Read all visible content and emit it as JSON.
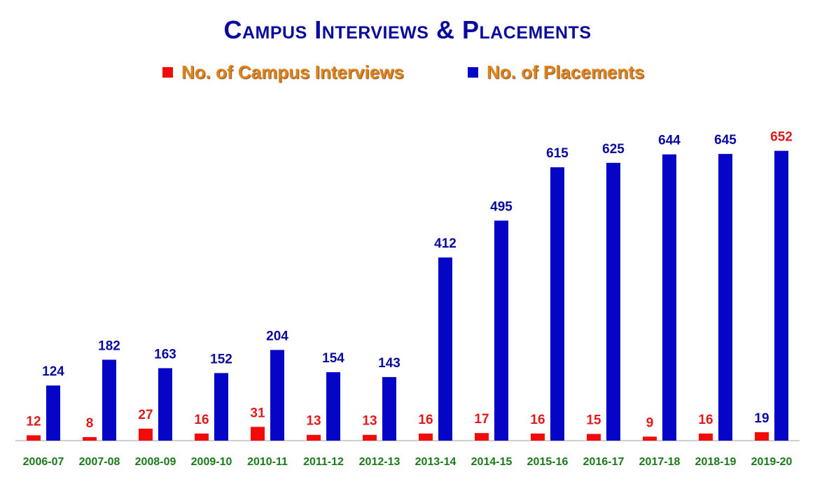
{
  "colors": {
    "title": "#0a0a9e",
    "interviews": "#f30a0a",
    "placements": "#0505c8",
    "xtick": "#1a7a1a",
    "legend_text": "#e0821e"
  },
  "chart_data": {
    "type": "bar",
    "title": "Campus Interviews & Placements",
    "categories": [
      "2006-07",
      "2007-08",
      "2008-09",
      "2009-10",
      "2010-11",
      "2011-12",
      "2012-13",
      "2013-14",
      "2014-15",
      "2015-16",
      "2016-17",
      "2017-18",
      "2018-19",
      "2019-20"
    ],
    "series": [
      {
        "name": "No. of Campus Interviews",
        "color": "#f30a0a",
        "values": [
          12,
          8,
          27,
          16,
          31,
          13,
          13,
          16,
          17,
          16,
          15,
          9,
          16,
          19
        ]
      },
      {
        "name": "No. of Placements",
        "color": "#0505c8",
        "values": [
          124,
          182,
          163,
          152,
          204,
          154,
          143,
          412,
          495,
          615,
          625,
          644,
          645,
          652
        ]
      }
    ],
    "ylim": [
      0,
      700
    ],
    "grid": false,
    "legend_position": "top"
  }
}
